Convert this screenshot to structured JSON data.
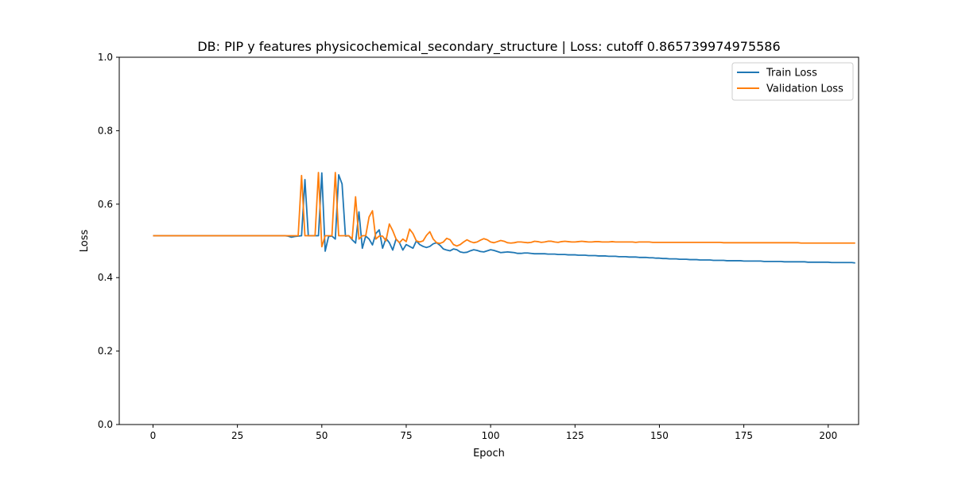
{
  "chart_data": {
    "type": "line",
    "title": "DB: PIP y features physicochemical_secondary_structure | Loss: cutoff 0.865739974975586",
    "xlabel": "Epoch",
    "ylabel": "Loss",
    "xlim": [
      -10,
      209
    ],
    "ylim": [
      0,
      1
    ],
    "xticks": [
      0,
      25,
      50,
      75,
      100,
      125,
      150,
      175,
      200
    ],
    "yticks": [
      0.0,
      0.2,
      0.4,
      0.6,
      0.8,
      1.0
    ],
    "xtick_labels": [
      "0",
      "25",
      "50",
      "75",
      "100",
      "125",
      "150",
      "175",
      "200"
    ],
    "ytick_labels": [
      "0.0",
      "0.2",
      "0.4",
      "0.6",
      "0.8",
      "1.0"
    ],
    "grid": false,
    "legend_position": "top-right",
    "series": [
      {
        "name": "Train Loss",
        "color": "#1f77b4",
        "values": [
          0.514,
          0.514,
          0.514,
          0.514,
          0.514,
          0.514,
          0.514,
          0.514,
          0.514,
          0.514,
          0.514,
          0.514,
          0.514,
          0.514,
          0.514,
          0.514,
          0.514,
          0.514,
          0.514,
          0.514,
          0.514,
          0.514,
          0.514,
          0.514,
          0.514,
          0.514,
          0.514,
          0.514,
          0.514,
          0.514,
          0.514,
          0.514,
          0.514,
          0.514,
          0.514,
          0.514,
          0.514,
          0.514,
          0.514,
          0.514,
          0.513,
          0.51,
          0.512,
          0.513,
          0.514,
          0.667,
          0.514,
          0.514,
          0.514,
          0.514,
          0.685,
          0.472,
          0.512,
          0.513,
          0.505,
          0.68,
          0.655,
          0.513,
          0.514,
          0.503,
          0.494,
          0.579,
          0.48,
          0.513,
          0.505,
          0.489,
          0.52,
          0.53,
          0.48,
          0.507,
          0.495,
          0.475,
          0.505,
          0.495,
          0.475,
          0.49,
          0.485,
          0.48,
          0.5,
          0.49,
          0.485,
          0.482,
          0.485,
          0.492,
          0.495,
          0.488,
          0.478,
          0.475,
          0.473,
          0.478,
          0.476,
          0.47,
          0.468,
          0.469,
          0.473,
          0.476,
          0.474,
          0.471,
          0.47,
          0.473,
          0.476,
          0.474,
          0.471,
          0.468,
          0.469,
          0.47,
          0.469,
          0.468,
          0.466,
          0.466,
          0.467,
          0.467,
          0.466,
          0.465,
          0.465,
          0.465,
          0.465,
          0.464,
          0.464,
          0.464,
          0.463,
          0.463,
          0.463,
          0.462,
          0.462,
          0.462,
          0.461,
          0.461,
          0.461,
          0.46,
          0.46,
          0.46,
          0.459,
          0.459,
          0.459,
          0.458,
          0.458,
          0.458,
          0.457,
          0.457,
          0.457,
          0.456,
          0.456,
          0.456,
          0.455,
          0.455,
          0.455,
          0.454,
          0.454,
          0.453,
          0.453,
          0.452,
          0.452,
          0.451,
          0.451,
          0.451,
          0.45,
          0.45,
          0.45,
          0.449,
          0.449,
          0.449,
          0.448,
          0.448,
          0.448,
          0.448,
          0.447,
          0.447,
          0.447,
          0.447,
          0.446,
          0.446,
          0.446,
          0.446,
          0.446,
          0.445,
          0.445,
          0.445,
          0.445,
          0.445,
          0.445,
          0.444,
          0.444,
          0.444,
          0.444,
          0.444,
          0.444,
          0.443,
          0.443,
          0.443,
          0.443,
          0.443,
          0.443,
          0.443,
          0.442,
          0.442,
          0.442,
          0.442,
          0.442,
          0.442,
          0.442,
          0.441,
          0.441,
          0.441,
          0.441,
          0.441,
          0.441,
          0.441,
          0.44
        ]
      },
      {
        "name": "Validation Loss",
        "color": "#ff7f0e",
        "values": [
          0.514,
          0.514,
          0.514,
          0.514,
          0.514,
          0.514,
          0.514,
          0.514,
          0.514,
          0.514,
          0.514,
          0.514,
          0.514,
          0.514,
          0.514,
          0.514,
          0.514,
          0.514,
          0.514,
          0.514,
          0.514,
          0.514,
          0.514,
          0.514,
          0.514,
          0.514,
          0.514,
          0.514,
          0.514,
          0.514,
          0.514,
          0.514,
          0.514,
          0.514,
          0.514,
          0.514,
          0.514,
          0.514,
          0.514,
          0.514,
          0.514,
          0.514,
          0.514,
          0.514,
          0.678,
          0.514,
          0.514,
          0.514,
          0.514,
          0.686,
          0.484,
          0.514,
          0.514,
          0.514,
          0.686,
          0.514,
          0.514,
          0.514,
          0.514,
          0.506,
          0.62,
          0.505,
          0.514,
          0.514,
          0.565,
          0.582,
          0.505,
          0.513,
          0.513,
          0.5,
          0.546,
          0.528,
          0.505,
          0.495,
          0.505,
          0.498,
          0.532,
          0.52,
          0.5,
          0.497,
          0.5,
          0.515,
          0.525,
          0.505,
          0.495,
          0.493,
          0.497,
          0.507,
          0.503,
          0.49,
          0.486,
          0.49,
          0.497,
          0.503,
          0.498,
          0.495,
          0.497,
          0.502,
          0.506,
          0.503,
          0.497,
          0.495,
          0.498,
          0.501,
          0.499,
          0.495,
          0.494,
          0.495,
          0.497,
          0.497,
          0.496,
          0.495,
          0.496,
          0.499,
          0.498,
          0.496,
          0.497,
          0.499,
          0.499,
          0.497,
          0.496,
          0.498,
          0.499,
          0.498,
          0.497,
          0.497,
          0.498,
          0.499,
          0.498,
          0.497,
          0.497,
          0.498,
          0.498,
          0.497,
          0.497,
          0.497,
          0.498,
          0.497,
          0.497,
          0.497,
          0.497,
          0.497,
          0.497,
          0.496,
          0.497,
          0.497,
          0.497,
          0.497,
          0.496,
          0.496,
          0.496,
          0.496,
          0.496,
          0.496,
          0.496,
          0.496,
          0.496,
          0.496,
          0.496,
          0.496,
          0.496,
          0.496,
          0.496,
          0.496,
          0.496,
          0.496,
          0.496,
          0.496,
          0.496,
          0.495,
          0.495,
          0.495,
          0.495,
          0.495,
          0.495,
          0.495,
          0.495,
          0.495,
          0.495,
          0.495,
          0.495,
          0.495,
          0.495,
          0.495,
          0.495,
          0.495,
          0.495,
          0.495,
          0.495,
          0.495,
          0.495,
          0.495,
          0.494,
          0.494,
          0.494,
          0.494,
          0.494,
          0.494,
          0.494,
          0.494,
          0.494,
          0.494,
          0.494,
          0.494,
          0.494,
          0.494,
          0.494,
          0.494,
          0.494
        ]
      }
    ]
  }
}
